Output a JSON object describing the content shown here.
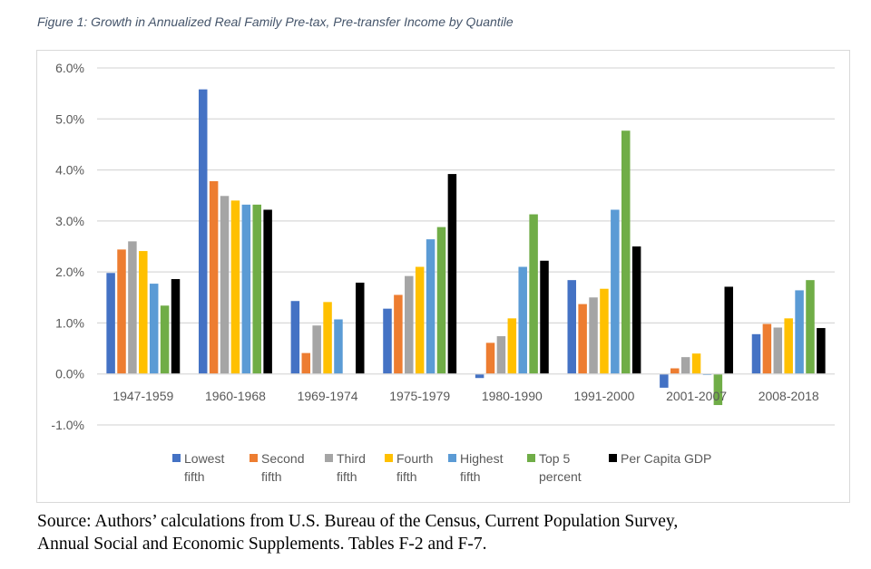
{
  "title": "Figure 1: Growth in Annualized Real Family Pre-tax, Pre-transfer Income by Quantile",
  "source": [
    "Source: Authors’ calculations from U.S. Bureau of the Census, Current Population Survey,",
    "Annual Social and Economic Supplements. Tables F-2 and F-7."
  ],
  "chart_data": {
    "type": "bar",
    "title": "",
    "xlabel": "",
    "ylabel": "",
    "ylim": [
      -1.0,
      6.0
    ],
    "yticks": [
      "-1.0%",
      "0.0%",
      "1.0%",
      "2.0%",
      "3.0%",
      "4.0%",
      "5.0%",
      "6.0%"
    ],
    "grid": true,
    "legend_position": "bottom",
    "categories": [
      "1947-1959",
      "1960-1968",
      "1969-1974",
      "1975-1979",
      "1980-1990",
      "1991-2000",
      "2001-2007",
      "2008-2018"
    ],
    "series": [
      {
        "name": "Lowest fifth",
        "label_lines": [
          "Lowest",
          "fifth"
        ],
        "color": "#4472c4",
        "values": [
          1.98,
          5.58,
          1.43,
          1.28,
          -0.08,
          1.84,
          -0.27,
          0.78
        ]
      },
      {
        "name": "Second fifth",
        "label_lines": [
          "Second",
          "fifth"
        ],
        "color": "#ed7d31",
        "values": [
          2.44,
          3.78,
          0.41,
          1.55,
          0.61,
          1.37,
          0.11,
          0.98
        ]
      },
      {
        "name": "Third fifth",
        "label_lines": [
          "Third",
          "fifth"
        ],
        "color": "#a5a5a5",
        "values": [
          2.6,
          3.49,
          0.95,
          1.92,
          0.74,
          1.5,
          0.33,
          0.91
        ]
      },
      {
        "name": "Fourth fifth",
        "label_lines": [
          "Fourth",
          "fifth"
        ],
        "color": "#ffc000",
        "values": [
          2.41,
          3.4,
          1.41,
          2.1,
          1.09,
          1.67,
          0.4,
          1.09
        ]
      },
      {
        "name": "Highest fifth",
        "label_lines": [
          "Highest",
          "fifth"
        ],
        "color": "#5b9bd5",
        "values": [
          1.77,
          3.32,
          1.07,
          2.64,
          2.1,
          3.22,
          -0.02,
          1.64
        ]
      },
      {
        "name": "Top 5 percent",
        "label_lines": [
          "Top 5",
          "percent"
        ],
        "color": "#70ad47",
        "values": [
          1.34,
          3.32,
          0,
          2.88,
          3.13,
          4.77,
          -0.61,
          1.84
        ]
      },
      {
        "name": "Per Capita GDP",
        "label_lines": [
          "Per Capita GDP"
        ],
        "color": "#000000",
        "values": [
          1.86,
          3.22,
          1.79,
          3.92,
          2.22,
          2.5,
          1.71,
          0.9
        ]
      }
    ]
  }
}
